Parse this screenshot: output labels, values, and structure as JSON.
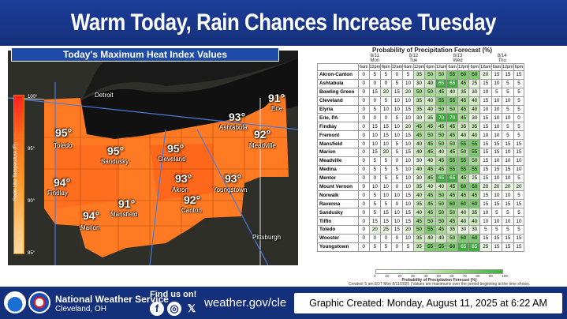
{
  "header": {
    "title": "Warm Today, Rain Chances Increase Tuesday"
  },
  "map": {
    "title": "Today's Maximum Heat Index Values",
    "scale_label": "Feels-Like Temperature (F)",
    "scale_ticks": [
      "100°",
      "95°",
      "90°",
      "85°"
    ],
    "places": [
      {
        "city": "Toledo",
        "temp": "95°"
      },
      {
        "city": "Sandusky",
        "temp": "95°"
      },
      {
        "city": "Cleveland",
        "temp": "95°"
      },
      {
        "city": "Ashtabula",
        "temp": "93°"
      },
      {
        "city": "Erie",
        "temp": "91°"
      },
      {
        "city": "Meadville",
        "temp": "92°"
      },
      {
        "city": "Findlay",
        "temp": "94°"
      },
      {
        "city": "Akron",
        "temp": "93°"
      },
      {
        "city": "Youngstown",
        "temp": "93°"
      },
      {
        "city": "Canton",
        "temp": "92°"
      },
      {
        "city": "Mansfield",
        "temp": "91°"
      },
      {
        "city": "Marion",
        "temp": "94°"
      }
    ],
    "other_labels": {
      "detroit": "Detroit",
      "pittsburgh": "Pittsburgh"
    },
    "highways": [
      "75",
      "80",
      "90",
      "90",
      "79",
      "77",
      "71",
      "76",
      "80",
      "30"
    ]
  },
  "pop": {
    "title": "Probability of Precipitation Forecast (%)",
    "days": [
      {
        "date": "8/11",
        "dow": "Mon"
      },
      {
        "date": "8/12",
        "dow": "Tue"
      },
      {
        "date": "8/13",
        "dow": "Wed"
      },
      {
        "date": "8/14",
        "dow": "Thu"
      }
    ],
    "hours": [
      "6am",
      "12pm",
      "6pm",
      "12am",
      "6am",
      "12pm",
      "6pm",
      "12am",
      "6am",
      "12pm",
      "6pm",
      "12am",
      "6am",
      "12pm",
      "6pm"
    ],
    "rows": [
      {
        "name": "Akron-Canton",
        "values": [
          0,
          5,
          5,
          0,
          5,
          35,
          50,
          50,
          55,
          60,
          60,
          20,
          15,
          15,
          15
        ]
      },
      {
        "name": "Ashtabula",
        "values": [
          0,
          0,
          0,
          5,
          10,
          30,
          40,
          65,
          65,
          45,
          25,
          15,
          10,
          5,
          5
        ]
      },
      {
        "name": "Bowling Green",
        "values": [
          0,
          15,
          20,
          15,
          20,
          50,
          50,
          45,
          40,
          35,
          30,
          10,
          5,
          5,
          5
        ]
      },
      {
        "name": "Cleveland",
        "values": [
          0,
          0,
          5,
          10,
          10,
          35,
          40,
          55,
          55,
          45,
          40,
          15,
          10,
          10,
          5
        ]
      },
      {
        "name": "Elyria",
        "values": [
          0,
          5,
          10,
          10,
          15,
          35,
          40,
          50,
          50,
          45,
          40,
          10,
          10,
          5,
          5
        ]
      },
      {
        "name": "Erie, PA",
        "values": [
          0,
          0,
          0,
          5,
          10,
          30,
          35,
          70,
          70,
          45,
          30,
          15,
          10,
          10,
          0
        ]
      },
      {
        "name": "Findlay",
        "values": [
          0,
          15,
          15,
          10,
          20,
          45,
          45,
          45,
          45,
          35,
          35,
          15,
          10,
          5,
          5
        ]
      },
      {
        "name": "Fremont",
        "values": [
          0,
          10,
          15,
          10,
          15,
          45,
          50,
          50,
          45,
          40,
          40,
          10,
          10,
          5,
          5
        ]
      },
      {
        "name": "Mansfield",
        "values": [
          0,
          10,
          10,
          5,
          10,
          40,
          45,
          50,
          50,
          55,
          55,
          15,
          15,
          15,
          15
        ]
      },
      {
        "name": "Marion",
        "values": [
          0,
          15,
          20,
          5,
          15,
          40,
          45,
          40,
          45,
          50,
          55,
          15,
          15,
          10,
          15
        ]
      },
      {
        "name": "Meadville",
        "values": [
          0,
          5,
          5,
          0,
          10,
          30,
          40,
          45,
          55,
          55,
          50,
          15,
          10,
          10,
          10
        ]
      },
      {
        "name": "Medina",
        "values": [
          0,
          5,
          5,
          5,
          10,
          40,
          45,
          45,
          55,
          55,
          55,
          15,
          15,
          15,
          10
        ]
      },
      {
        "name": "Mentor",
        "values": [
          0,
          0,
          5,
          5,
          10,
          30,
          45,
          65,
          65,
          45,
          25,
          15,
          10,
          10,
          5
        ]
      },
      {
        "name": "Mount Vernon",
        "values": [
          0,
          10,
          10,
          0,
          10,
          35,
          40,
          40,
          45,
          60,
          60,
          20,
          20,
          20,
          20
        ]
      },
      {
        "name": "Norwalk",
        "values": [
          0,
          5,
          10,
          10,
          15,
          40,
          45,
          50,
          45,
          45,
          45,
          15,
          10,
          10,
          5
        ]
      },
      {
        "name": "Ravenna",
        "values": [
          0,
          5,
          5,
          0,
          10,
          35,
          45,
          50,
          60,
          60,
          60,
          15,
          15,
          15,
          15
        ]
      },
      {
        "name": "Sandusky",
        "values": [
          0,
          5,
          15,
          10,
          15,
          40,
          45,
          50,
          50,
          40,
          35,
          10,
          5,
          5,
          5
        ]
      },
      {
        "name": "Tiffin",
        "values": [
          0,
          15,
          15,
          10,
          15,
          45,
          50,
          50,
          45,
          40,
          40,
          10,
          10,
          10,
          10
        ]
      },
      {
        "name": "Toledo",
        "values": [
          0,
          20,
          25,
          15,
          20,
          50,
          55,
          45,
          35,
          30,
          30,
          5,
          5,
          5,
          5
        ]
      },
      {
        "name": "Wooster",
        "values": [
          0,
          0,
          0,
          0,
          10,
          35,
          40,
          40,
          50,
          60,
          60,
          15,
          15,
          15,
          15
        ]
      },
      {
        "name": "Youngstown",
        "values": [
          0,
          5,
          5,
          0,
          5,
          35,
          55,
          55,
          60,
          65,
          65,
          25,
          15,
          15,
          15
        ]
      }
    ],
    "legend_ticks": [
      "0",
      "10",
      "20",
      "30",
      "40",
      "50",
      "60",
      "70",
      "80",
      "90",
      "100"
    ],
    "legend_title": "Probability of Precipitation Forecast (%)",
    "footnote": "Created: 5 am EDT Mon 8/11/2025  |  Values are maximums over the period beginning at the time shown."
  },
  "footer": {
    "org_name": "National Weather Service",
    "org_city": "Cleveland, OH",
    "find_us": "Find us on!",
    "website": "weather.gov/cle",
    "created": "Graphic Created: Monday, August 11, 2025 at 6:22 AM"
  },
  "colors": {
    "brand_blue": "#15307a",
    "pop_green": "#3fae3f",
    "heat_orange": "#ff7a1c"
  }
}
